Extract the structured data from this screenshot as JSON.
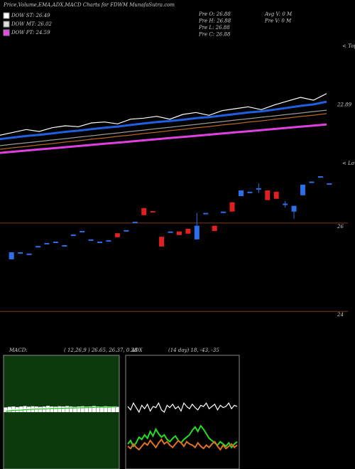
{
  "header": {
    "title": "Price,Volume,EMA,ADX,MACD Charts for FDWM MunafaSutra.com"
  },
  "legend": [
    {
      "label": "DOW ST: 26.49",
      "color": "#ffffff"
    },
    {
      "label": "DOW MT: 26.02",
      "color": "#dddddd"
    },
    {
      "label": "DOW PT: 24.59",
      "color": "#ee44ee"
    }
  ],
  "stats": [
    {
      "label": "Pre  O: 26.88"
    },
    {
      "label": "Pre  H: 26.88"
    },
    {
      "label": "Pre  L: 26.88"
    },
    {
      "label": "Pre  C: 26.88"
    },
    {
      "label": "Avg V: 0  M"
    },
    {
      "label": "Pre  V: 0  M"
    }
  ],
  "chart_data": [
    {
      "type": "line",
      "side_label": "< Tops",
      "ylim": [
        19.8,
        25.8
      ],
      "yticks": [
        22.89
      ],
      "series": [
        {
          "color": "#ffffff",
          "values": [
            21.1,
            21.25,
            21.4,
            21.3,
            21.5,
            21.6,
            21.55,
            21.75,
            21.8,
            21.7,
            21.95,
            22.0,
            22.1,
            21.95,
            22.2,
            22.3,
            22.15,
            22.4,
            22.5,
            22.6,
            22.45,
            22.7,
            22.9,
            23.1,
            22.95,
            23.3
          ]
        },
        {
          "color": "#1f5fe0",
          "values": [
            20.9,
            20.98,
            21.06,
            21.12,
            21.2,
            21.28,
            21.34,
            21.42,
            21.5,
            21.56,
            21.64,
            21.72,
            21.8,
            21.85,
            21.92,
            22.0,
            22.06,
            22.14,
            22.22,
            22.3,
            22.36,
            22.45,
            22.55,
            22.65,
            22.73,
            22.87
          ]
        },
        {
          "color": "#999999",
          "values": [
            20.55,
            20.63,
            20.7,
            20.77,
            20.85,
            20.92,
            21.0,
            21.07,
            21.15,
            21.22,
            21.3,
            21.37,
            21.45,
            21.52,
            21.6,
            21.67,
            21.75,
            21.82,
            21.9,
            21.97,
            22.05,
            22.12,
            22.2,
            22.27,
            22.35,
            22.42
          ]
        },
        {
          "color": "#b5651d",
          "values": [
            20.36,
            20.44,
            20.51,
            20.59,
            20.66,
            20.74,
            20.81,
            20.89,
            20.96,
            21.04,
            21.11,
            21.19,
            21.26,
            21.34,
            21.41,
            21.49,
            21.56,
            21.64,
            21.71,
            21.79,
            21.86,
            21.94,
            22.01,
            22.09,
            22.16,
            22.24
          ]
        },
        {
          "color": "#e040e0",
          "values": [
            20.17,
            20.23,
            20.29,
            20.35,
            20.41,
            20.47,
            20.53,
            20.59,
            20.65,
            20.71,
            20.77,
            20.83,
            20.89,
            20.95,
            21.01,
            21.07,
            21.13,
            21.19,
            21.25,
            21.31,
            21.37,
            21.43,
            21.49,
            21.55,
            21.61,
            21.67
          ]
        }
      ]
    },
    {
      "type": "candlestick",
      "side_label": "< Lows",
      "ylim": [
        23.65,
        27.35
      ],
      "yticks": [
        24,
        26
      ],
      "grid": true,
      "grid_color": "#7a3a10",
      "open": [
        25.18,
        25.34,
        25.31,
        25.48,
        25.55,
        25.58,
        25.5,
        25.74,
        25.82,
        25.63,
        25.58,
        25.61,
        25.77,
        25.84,
        26.03,
        26.34,
        26.27,
        25.69,
        25.81,
        25.81,
        25.87,
        25.63,
        26.23,
        25.94,
        26.26,
        26.47,
        26.61,
        26.71,
        26.79,
        26.74,
        26.71,
        26.44,
        26.26,
        26.63,
        26.94,
        27.06,
        26.9
      ],
      "high": [
        25.34,
        25.34,
        25.31,
        25.48,
        25.55,
        25.58,
        25.5,
        25.74,
        25.82,
        25.63,
        25.58,
        25.61,
        25.77,
        25.84,
        26.03,
        26.34,
        26.27,
        25.69,
        25.81,
        25.81,
        25.87,
        26.23,
        26.23,
        25.94,
        26.26,
        26.47,
        26.74,
        26.71,
        26.9,
        26.74,
        26.71,
        26.5,
        26.39,
        26.87,
        26.94,
        27.06,
        26.9
      ],
      "low": [
        25.18,
        25.34,
        25.31,
        25.48,
        25.55,
        25.58,
        25.5,
        25.74,
        25.82,
        25.63,
        25.58,
        25.61,
        25.68,
        25.84,
        26.03,
        26.18,
        26.27,
        25.47,
        25.81,
        25.73,
        25.76,
        25.63,
        26.23,
        25.82,
        26.26,
        26.26,
        26.61,
        26.71,
        26.68,
        26.52,
        26.55,
        26.35,
        26.1,
        26.63,
        26.94,
        27.06,
        26.9
      ],
      "close": [
        25.34,
        25.34,
        25.31,
        25.48,
        25.55,
        25.58,
        25.5,
        25.74,
        25.82,
        25.63,
        25.58,
        25.61,
        25.68,
        25.84,
        26.03,
        26.18,
        26.27,
        25.47,
        25.81,
        25.73,
        25.76,
        25.94,
        26.23,
        25.82,
        26.26,
        26.26,
        26.74,
        26.71,
        26.79,
        26.52,
        26.55,
        26.44,
        26.39,
        26.87,
        26.94,
        27.06,
        26.9
      ],
      "colors": [
        "#2a70e8",
        "#2a70e8",
        "#2a70e8",
        "#2a70e8",
        "#2a70e8",
        "#2a70e8",
        "#2a70e8",
        "#2a70e8",
        "#2a70e8",
        "#2a70e8",
        "#2a70e8",
        "#2a70e8",
        "#e02020",
        "#2a70e8",
        "#2a70e8",
        "#e02020",
        "#e02020",
        "#e02020",
        "#2a70e8",
        "#e02020",
        "#e02020",
        "#2a70e8",
        "#2a70e8",
        "#e02020",
        "#2a70e8",
        "#e02020",
        "#2a70e8",
        "#2a70e8",
        "#2a70e8",
        "#e02020",
        "#e02020",
        "#2a70e8",
        "#2a70e8",
        "#2a70e8",
        "#2a70e8",
        "#2a70e8",
        "#2a70e8"
      ]
    },
    {
      "type": "macd",
      "title": "MACD:",
      "subtitle": "( 12,26,9 ) 26.65, 26.37, 0.28",
      "ylim": [
        -3,
        3
      ],
      "histogram": {
        "color": "#ffffff",
        "values": [
          0.25,
          0.28,
          0.3,
          0.27,
          0.3,
          0.32,
          0.29,
          0.31,
          0.3,
          0.28,
          0.3,
          0.33,
          0.3,
          0.29,
          0.31,
          0.3,
          0.32,
          0.3,
          0.28,
          0.3,
          0.31,
          0.29,
          0.3,
          0.32,
          0.3,
          0.29,
          0.31,
          0.3,
          0.28,
          0.28
        ]
      },
      "series": [
        {
          "color": "#ffffff",
          "values": [
            0.1,
            0.12,
            0.15,
            0.14,
            0.16,
            0.18,
            0.17,
            0.19,
            0.2,
            0.18,
            0.2,
            0.22,
            0.21,
            0.2,
            0.22,
            0.23,
            0.22,
            0.24,
            0.23,
            0.25,
            0.24,
            0.25,
            0.26,
            0.27,
            0.26,
            0.27,
            0.28,
            0.27,
            0.28,
            0.28
          ]
        },
        {
          "color": "#22cc22",
          "values": [
            0.05,
            0.07,
            0.09,
            0.1,
            0.11,
            0.13,
            0.14,
            0.15,
            0.16,
            0.16,
            0.17,
            0.18,
            0.19,
            0.19,
            0.2,
            0.21,
            0.21,
            0.22,
            0.22,
            0.23,
            0.23,
            0.24,
            0.24,
            0.25,
            0.25,
            0.26,
            0.26,
            0.26,
            0.27,
            0.27
          ]
        }
      ]
    },
    {
      "type": "adx",
      "title": "ADX",
      "subtitle": "(14  day) 18, -43, -35",
      "ylim": [
        0,
        100
      ],
      "series": [
        {
          "color": "#ffffff",
          "values": [
            55,
            52,
            58,
            54,
            50,
            56,
            53,
            57,
            51,
            55,
            54,
            58,
            52,
            50,
            56,
            54,
            57,
            53,
            55,
            51,
            58,
            55,
            53,
            57,
            54,
            52,
            56,
            55,
            58,
            53,
            55,
            57,
            52,
            56,
            54,
            55,
            58,
            53,
            56,
            55
          ]
        },
        {
          "color": "#22dd22",
          "values": [
            22,
            25,
            20,
            23,
            28,
            26,
            30,
            27,
            33,
            29,
            35,
            31,
            28,
            30,
            26,
            24,
            27,
            29,
            25,
            23,
            26,
            28,
            30,
            34,
            37,
            33,
            38,
            35,
            31,
            27,
            25,
            23,
            21,
            24,
            22,
            20,
            23,
            19,
            22,
            24
          ]
        },
        {
          "color": "#e07020",
          "values": [
            20,
            18,
            22,
            19,
            17,
            20,
            23,
            21,
            25,
            22,
            19,
            23,
            26,
            22,
            24,
            21,
            19,
            22,
            25,
            23,
            20,
            24,
            22,
            21,
            19,
            23,
            20,
            18,
            21,
            19,
            22,
            24,
            20,
            17,
            21,
            18,
            20,
            22,
            19,
            21
          ]
        }
      ]
    }
  ]
}
